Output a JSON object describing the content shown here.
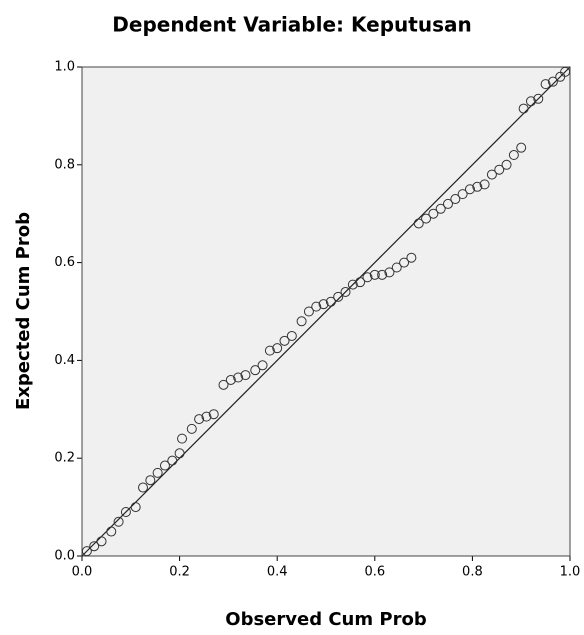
{
  "chart_data": {
    "type": "scatter",
    "title": "Dependent Variable: Keputusan",
    "x_label": "Observed Cum Prob",
    "y_label": "Expected Cum Prob",
    "x": [
      0.01,
      0.025,
      0.04,
      0.06,
      0.075,
      0.09,
      0.11,
      0.125,
      0.14,
      0.155,
      0.17,
      0.185,
      0.2,
      0.205,
      0.225,
      0.24,
      0.255,
      0.27,
      0.29,
      0.305,
      0.32,
      0.335,
      0.355,
      0.37,
      0.385,
      0.4,
      0.415,
      0.43,
      0.45,
      0.465,
      0.48,
      0.495,
      0.51,
      0.525,
      0.54,
      0.555,
      0.57,
      0.585,
      0.6,
      0.615,
      0.63,
      0.645,
      0.66,
      0.675,
      0.69,
      0.705,
      0.72,
      0.735,
      0.75,
      0.765,
      0.78,
      0.795,
      0.81,
      0.825,
      0.84,
      0.855,
      0.87,
      0.885,
      0.9,
      0.905,
      0.92,
      0.935,
      0.95,
      0.965,
      0.98,
      0.99
    ],
    "values": [
      0.01,
      0.02,
      0.03,
      0.05,
      0.07,
      0.09,
      0.1,
      0.14,
      0.155,
      0.17,
      0.185,
      0.195,
      0.21,
      0.24,
      0.26,
      0.28,
      0.285,
      0.29,
      0.35,
      0.36,
      0.365,
      0.37,
      0.38,
      0.39,
      0.42,
      0.425,
      0.44,
      0.45,
      0.48,
      0.5,
      0.51,
      0.515,
      0.52,
      0.53,
      0.54,
      0.555,
      0.56,
      0.57,
      0.575,
      0.575,
      0.58,
      0.59,
      0.6,
      0.61,
      0.68,
      0.69,
      0.7,
      0.71,
      0.72,
      0.73,
      0.74,
      0.75,
      0.755,
      0.76,
      0.78,
      0.79,
      0.8,
      0.82,
      0.835,
      0.915,
      0.93,
      0.935,
      0.965,
      0.97,
      0.98,
      0.99
    ],
    "color": "#333333",
    "background": "#f0f0f0",
    "reference_line": true,
    "xlim": [
      0,
      1
    ],
    "ylim": [
      0,
      1
    ],
    "xticks": [
      {
        "value": 0,
        "label": "0.0"
      },
      0.2,
      0.4,
      0.6,
      0.8,
      {
        "value": 1,
        "label": "1.0"
      }
    ],
    "yticks": [
      {
        "value": 0,
        "label": "0.0"
      },
      0.2,
      0.4,
      0.6,
      0.8,
      {
        "value": 1,
        "label": "1.0"
      }
    ]
  }
}
